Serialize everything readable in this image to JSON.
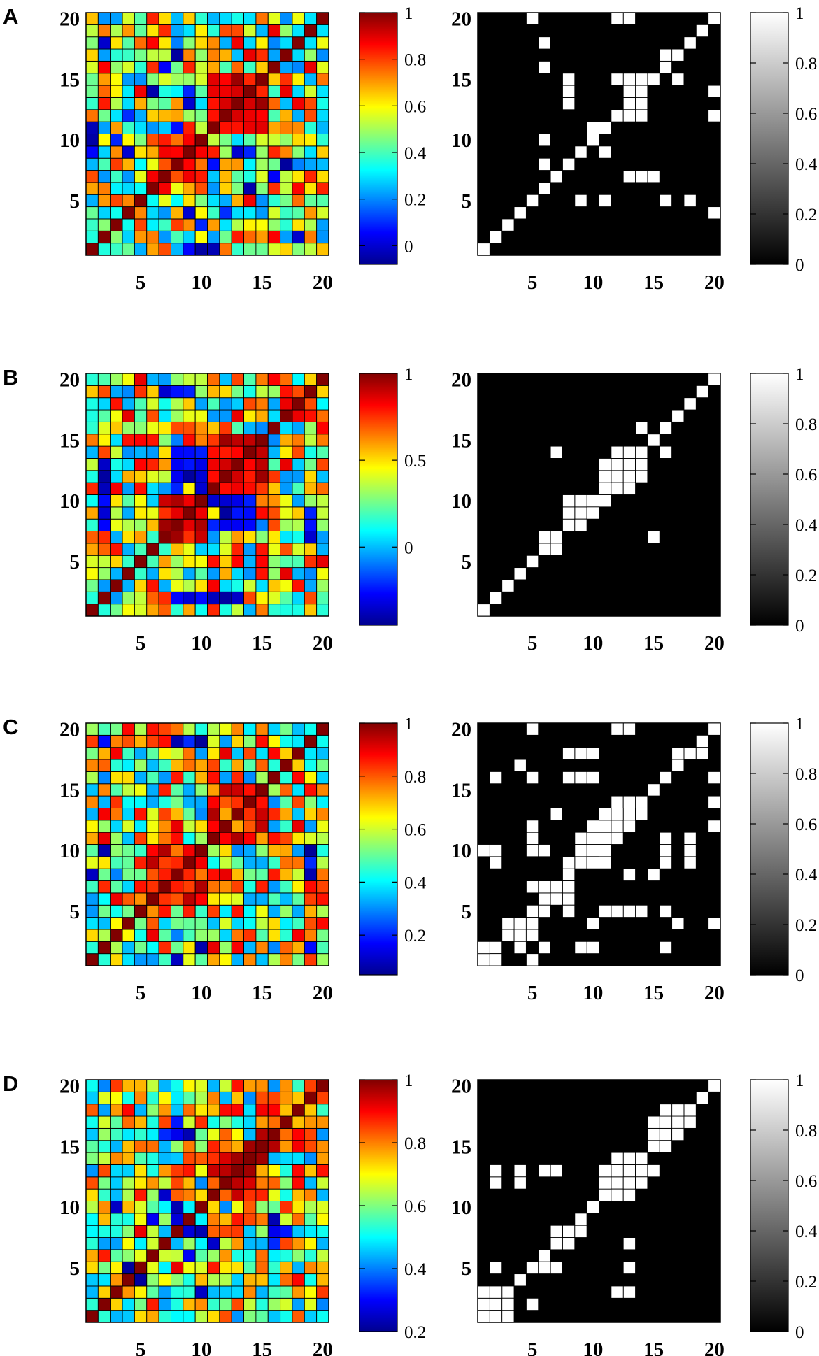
{
  "panels": [
    {
      "label": "A",
      "colorbar_ticks": [
        "0",
        "0.2",
        "0.4",
        "0.6",
        "0.8",
        "1"
      ],
      "colorbar_range": [
        -0.08,
        1.0
      ]
    },
    {
      "label": "B",
      "colorbar_ticks": [
        "0",
        "0.5",
        "1"
      ],
      "colorbar_range": [
        -0.45,
        1.0
      ]
    },
    {
      "label": "C",
      "colorbar_ticks": [
        "0.2",
        "0.4",
        "0.6",
        "0.8",
        "1"
      ],
      "colorbar_range": [
        0.05,
        1.0
      ]
    },
    {
      "label": "D",
      "colorbar_ticks": [
        "0.2",
        "0.4",
        "0.6",
        "0.8",
        "1"
      ],
      "colorbar_range": [
        0.2,
        1.0
      ]
    }
  ],
  "binary_colorbar_ticks": [
    "0",
    "0.2",
    "0.4",
    "0.6",
    "0.8",
    "1"
  ],
  "axis_ticks": [
    "5",
    "10",
    "15",
    "20"
  ],
  "colors": {
    "binary_on": "#ffffff",
    "binary_off": "#000000",
    "grid": "#000000"
  },
  "chart_data": [
    {
      "type": "heatmap",
      "panel": "A",
      "colormap": "jet",
      "size": 20,
      "range": [
        -0.08,
        1.0
      ],
      "seed": 11,
      "strong_blocks": [
        [
          11,
          15,
          11,
          15
        ],
        [
          7,
          10,
          7,
          10
        ]
      ],
      "weak_cells": [
        [
          1,
          9
        ],
        [
          1,
          11
        ],
        [
          2,
          18
        ],
        [
          3,
          10
        ],
        [
          4,
          9
        ],
        [
          7,
          16
        ],
        [
          8,
          9
        ],
        [
          8,
          11
        ],
        [
          9,
          10
        ],
        [
          10,
          1
        ],
        [
          11,
          1
        ],
        [
          12,
          4
        ],
        [
          13,
          9
        ],
        [
          14,
          9
        ],
        [
          6,
          14
        ],
        [
          17,
          8
        ]
      ]
    },
    {
      "type": "heatmap",
      "panel": "B",
      "colormap": "jet",
      "size": 20,
      "range": [
        -0.45,
        1.0
      ],
      "seed": 23,
      "strong_blocks": [
        [
          11,
          15,
          11,
          15
        ],
        [
          7,
          10,
          7,
          10
        ]
      ],
      "weak_cells": [
        [
          8,
          12
        ],
        [
          8,
          13
        ],
        [
          8,
          14
        ],
        [
          9,
          12
        ],
        [
          9,
          13
        ],
        [
          9,
          14
        ],
        [
          10,
          12
        ],
        [
          10,
          13
        ],
        [
          10,
          14
        ],
        [
          11,
          8
        ],
        [
          12,
          8
        ],
        [
          13,
          8
        ],
        [
          14,
          8
        ],
        [
          11,
          10
        ],
        [
          12,
          10
        ],
        [
          13,
          10
        ],
        [
          14,
          10
        ],
        [
          8,
          2
        ],
        [
          9,
          2
        ],
        [
          10,
          2
        ],
        [
          19,
          7
        ],
        [
          19,
          8
        ],
        [
          19,
          9
        ],
        [
          2,
          11
        ],
        [
          2,
          12
        ],
        [
          2,
          13
        ]
      ]
    },
    {
      "type": "heatmap",
      "panel": "C",
      "colormap": "jet",
      "size": 20,
      "range": [
        0.05,
        1.0
      ],
      "seed": 37,
      "strong_blocks": [
        [
          11,
          15,
          11,
          15
        ],
        [
          6,
          10,
          6,
          10
        ]
      ],
      "weak_cells": [
        [
          1,
          8
        ],
        [
          7,
          9
        ],
        [
          8,
          6
        ],
        [
          10,
          7
        ],
        [
          10,
          19
        ],
        [
          19,
          2
        ],
        [
          19,
          9
        ],
        [
          8,
          19
        ],
        [
          2,
          10
        ]
      ]
    },
    {
      "type": "heatmap",
      "panel": "D",
      "colormap": "jet",
      "size": 20,
      "range": [
        0.2,
        1.0
      ],
      "seed": 53,
      "strong_blocks": [
        [
          11,
          15,
          11,
          15
        ],
        [
          15,
          19,
          15,
          19
        ]
      ],
      "weak_cells": [
        [
          8,
          9
        ],
        [
          8,
          10
        ],
        [
          9,
          9
        ],
        [
          10,
          8
        ],
        [
          5,
          4
        ],
        [
          6,
          9
        ],
        [
          7,
          11
        ],
        [
          7,
          16
        ],
        [
          9,
          16
        ],
        [
          3,
          10
        ],
        [
          4,
          5
        ],
        [
          17,
          8
        ],
        [
          16,
          8
        ]
      ]
    },
    {
      "type": "heatmap",
      "panel": "A",
      "colormap": "gray",
      "size": 20,
      "range": [
        0,
        1
      ],
      "on_cells": [
        [
          1,
          1
        ],
        [
          2,
          2
        ],
        [
          3,
          3
        ],
        [
          4,
          4
        ],
        [
          5,
          5
        ],
        [
          6,
          6
        ],
        [
          7,
          7
        ],
        [
          8,
          8
        ],
        [
          9,
          9
        ],
        [
          10,
          10
        ],
        [
          11,
          11
        ],
        [
          12,
          12
        ],
        [
          13,
          13
        ],
        [
          14,
          14
        ],
        [
          15,
          15
        ],
        [
          16,
          16
        ],
        [
          17,
          17
        ],
        [
          18,
          18
        ],
        [
          19,
          19
        ],
        [
          20,
          20
        ],
        [
          20,
          4
        ],
        [
          20,
          12
        ],
        [
          20,
          14
        ],
        [
          18,
          5
        ],
        [
          17,
          15
        ],
        [
          16,
          5
        ],
        [
          16,
          17
        ],
        [
          15,
          7
        ],
        [
          14,
          7
        ],
        [
          13,
          7
        ],
        [
          14,
          12
        ],
        [
          14,
          13
        ],
        [
          14,
          14
        ],
        [
          14,
          15
        ],
        [
          13,
          12
        ],
        [
          13,
          14
        ],
        [
          13,
          15
        ],
        [
          12,
          15
        ],
        [
          13,
          20
        ],
        [
          12,
          20
        ],
        [
          11,
          5
        ],
        [
          11,
          9
        ],
        [
          10,
          11
        ],
        [
          9,
          5
        ],
        [
          8,
          13
        ],
        [
          8,
          14
        ],
        [
          8,
          15
        ],
        [
          6,
          8
        ],
        [
          6,
          10
        ],
        [
          6,
          16
        ],
        [
          6,
          18
        ],
        [
          5,
          20
        ]
      ]
    },
    {
      "type": "heatmap",
      "panel": "B",
      "colormap": "gray",
      "size": 20,
      "range": [
        0,
        1
      ],
      "on_cells": [
        [
          1,
          1
        ],
        [
          2,
          2
        ],
        [
          3,
          3
        ],
        [
          4,
          4
        ],
        [
          5,
          5
        ],
        [
          6,
          6
        ],
        [
          7,
          7
        ],
        [
          8,
          8
        ],
        [
          9,
          9
        ],
        [
          10,
          10
        ],
        [
          11,
          11
        ],
        [
          12,
          12
        ],
        [
          13,
          13
        ],
        [
          14,
          14
        ],
        [
          15,
          15
        ],
        [
          16,
          16
        ],
        [
          17,
          17
        ],
        [
          18,
          18
        ],
        [
          19,
          19
        ],
        [
          20,
          20
        ],
        [
          6,
          7
        ],
        [
          7,
          6
        ],
        [
          8,
          9
        ],
        [
          9,
          8
        ],
        [
          10,
          9
        ],
        [
          9,
          10
        ],
        [
          8,
          10
        ],
        [
          11,
          10
        ],
        [
          12,
          11
        ],
        [
          13,
          11
        ],
        [
          12,
          12
        ],
        [
          12,
          13
        ],
        [
          13,
          12
        ],
        [
          14,
          12
        ],
        [
          14,
          13
        ],
        [
          13,
          14
        ],
        [
          11,
          12
        ],
        [
          11,
          13
        ],
        [
          12,
          14
        ],
        [
          15,
          7
        ],
        [
          16,
          14
        ],
        [
          14,
          16
        ],
        [
          7,
          14
        ]
      ]
    },
    {
      "type": "heatmap",
      "panel": "C",
      "colormap": "gray",
      "size": 20,
      "range": [
        0,
        1
      ],
      "on_cells": [
        [
          1,
          1
        ],
        [
          2,
          2
        ],
        [
          3,
          3
        ],
        [
          4,
          4
        ],
        [
          5,
          5
        ],
        [
          6,
          6
        ],
        [
          7,
          7
        ],
        [
          8,
          8
        ],
        [
          9,
          9
        ],
        [
          10,
          10
        ],
        [
          11,
          11
        ],
        [
          12,
          12
        ],
        [
          13,
          13
        ],
        [
          14,
          14
        ],
        [
          15,
          15
        ],
        [
          16,
          16
        ],
        [
          17,
          17
        ],
        [
          18,
          18
        ],
        [
          19,
          19
        ],
        [
          20,
          20
        ],
        [
          1,
          2
        ],
        [
          2,
          1
        ],
        [
          4,
          3
        ],
        [
          3,
          4
        ],
        [
          5,
          3
        ],
        [
          4,
          2
        ],
        [
          5,
          4
        ],
        [
          6,
          7
        ],
        [
          7,
          6
        ],
        [
          8,
          6
        ],
        [
          7,
          7
        ],
        [
          8,
          7
        ],
        [
          8,
          9
        ],
        [
          9,
          9
        ],
        [
          9,
          10
        ],
        [
          9,
          11
        ],
        [
          10,
          9
        ],
        [
          10,
          11
        ],
        [
          11,
          9
        ],
        [
          11,
          10
        ],
        [
          10,
          12
        ],
        [
          12,
          12
        ],
        [
          12,
          13
        ],
        [
          12,
          14
        ],
        [
          13,
          12
        ],
        [
          13,
          13
        ],
        [
          13,
          14
        ],
        [
          14,
          13
        ],
        [
          11,
          12
        ],
        [
          11,
          13
        ],
        [
          12,
          11
        ],
        [
          20,
          4
        ],
        [
          20,
          12
        ],
        [
          20,
          14
        ],
        [
          20,
          16
        ],
        [
          18,
          9
        ],
        [
          18,
          10
        ],
        [
          18,
          11
        ],
        [
          16,
          9
        ],
        [
          16,
          10
        ],
        [
          16,
          11
        ],
        [
          17,
          4
        ],
        [
          16,
          2
        ],
        [
          16,
          5
        ],
        [
          17,
          17
        ],
        [
          16,
          16
        ],
        [
          17,
          18
        ],
        [
          19,
          18
        ],
        [
          14,
          5
        ],
        [
          13,
          5
        ],
        [
          12,
          5
        ],
        [
          11,
          5
        ],
        [
          10,
          2
        ],
        [
          9,
          2
        ],
        [
          10,
          4
        ],
        [
          9,
          2
        ],
        [
          13,
          8
        ],
        [
          15,
          8
        ],
        [
          13,
          20
        ],
        [
          12,
          20
        ],
        [
          10,
          16
        ],
        [
          9,
          16
        ],
        [
          8,
          16
        ],
        [
          10,
          18
        ],
        [
          9,
          18
        ],
        [
          8,
          18
        ],
        [
          7,
          13
        ],
        [
          6,
          10
        ],
        [
          5,
          7
        ],
        [
          5,
          10
        ],
        [
          5,
          11
        ],
        [
          5,
          12
        ],
        [
          5,
          16
        ],
        [
          4,
          17
        ],
        [
          5,
          20
        ],
        [
          2,
          9
        ],
        [
          2,
          10
        ],
        [
          1,
          10
        ],
        [
          2,
          16
        ],
        [
          6,
          2
        ],
        [
          6,
          5
        ],
        [
          8,
          5
        ],
        [
          5,
          1
        ]
      ]
    },
    {
      "type": "heatmap",
      "panel": "D",
      "colormap": "gray",
      "size": 20,
      "range": [
        0,
        1
      ],
      "on_cells": [
        [
          1,
          1
        ],
        [
          2,
          2
        ],
        [
          3,
          3
        ],
        [
          4,
          4
        ],
        [
          5,
          5
        ],
        [
          6,
          6
        ],
        [
          7,
          7
        ],
        [
          8,
          8
        ],
        [
          9,
          9
        ],
        [
          10,
          10
        ],
        [
          11,
          11
        ],
        [
          12,
          12
        ],
        [
          13,
          13
        ],
        [
          14,
          14
        ],
        [
          15,
          15
        ],
        [
          16,
          16
        ],
        [
          17,
          17
        ],
        [
          18,
          18
        ],
        [
          19,
          19
        ],
        [
          20,
          20
        ],
        [
          1,
          2
        ],
        [
          2,
          1
        ],
        [
          1,
          3
        ],
        [
          3,
          1
        ],
        [
          3,
          2
        ],
        [
          2,
          3
        ],
        [
          5,
          2
        ],
        [
          2,
          5
        ],
        [
          7,
          5
        ],
        [
          6,
          5
        ],
        [
          7,
          8
        ],
        [
          8,
          7
        ],
        [
          9,
          8
        ],
        [
          12,
          11
        ],
        [
          12,
          12
        ],
        [
          12,
          13
        ],
        [
          13,
          11
        ],
        [
          13,
          12
        ],
        [
          13,
          14
        ],
        [
          14,
          13
        ],
        [
          11,
          12
        ],
        [
          11,
          13
        ],
        [
          12,
          14
        ],
        [
          15,
          13
        ],
        [
          14,
          12
        ],
        [
          15,
          16
        ],
        [
          16,
          15
        ],
        [
          17,
          16
        ],
        [
          16,
          17
        ],
        [
          15,
          17
        ],
        [
          17,
          18
        ],
        [
          18,
          17
        ],
        [
          16,
          18
        ],
        [
          14,
          13
        ],
        [
          13,
          3
        ],
        [
          12,
          3
        ],
        [
          13,
          5
        ],
        [
          13,
          7
        ],
        [
          7,
          13
        ],
        [
          6,
          13
        ],
        [
          4,
          13
        ],
        [
          4,
          12
        ],
        [
          2,
          12
        ],
        [
          2,
          13
        ]
      ]
    }
  ]
}
